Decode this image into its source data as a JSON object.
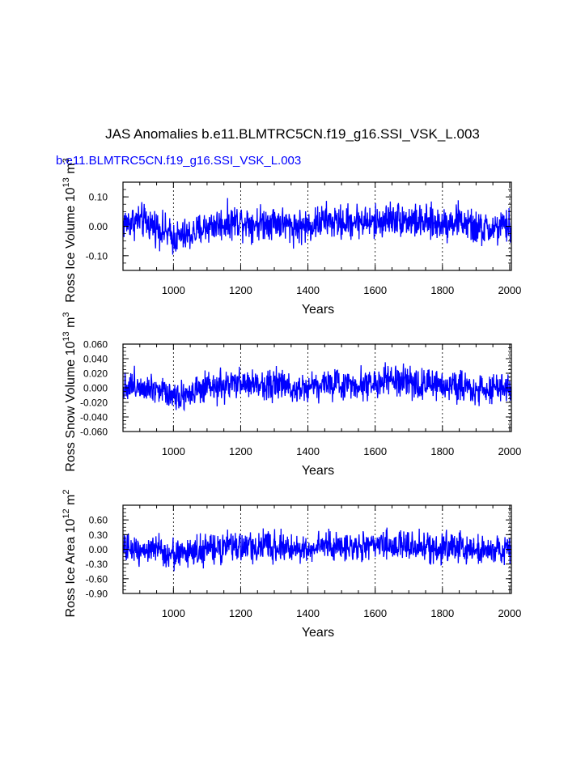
{
  "title": "JAS Anomalies b.e11.BLMTRC5CN.f19_g16.SSI_VSK_L.003",
  "subtitle": "b.e11.BLMTRC5CN.f19_g16.SSI_VSK_L.003",
  "colors": {
    "series": "#0000ff",
    "axis": "#000000",
    "grid": "#000000"
  },
  "chart_data": [
    {
      "type": "line",
      "ylabel": "Ross Ice Volume 10^13 m^3",
      "xlabel": "Years",
      "xlim": [
        850,
        2005
      ],
      "ylim": [
        -0.15,
        0.15
      ],
      "xticks": [
        1000,
        1200,
        1400,
        1600,
        1800,
        2000
      ],
      "xticklabels": [
        "1000",
        "1200",
        "1400",
        "1600",
        "1800",
        "2000"
      ],
      "yticks": [
        -0.1,
        0.0,
        0.1
      ],
      "yticklabels": [
        "-0.10",
        "0.00",
        "0.10"
      ],
      "grid": "vertical dashed at major x ticks",
      "series": [
        {
          "color": "#0000ff",
          "x": [
            850,
            900,
            950,
            1000,
            1050,
            1100,
            1150,
            1200,
            1250,
            1300,
            1350,
            1400,
            1450,
            1500,
            1550,
            1600,
            1650,
            1700,
            1750,
            1800,
            1850,
            1900,
            1950,
            2000
          ],
          "values": [
            0.01,
            0.02,
            0.0,
            -0.04,
            -0.03,
            0.0,
            0.01,
            0.02,
            0.01,
            0.02,
            0.0,
            0.0,
            0.02,
            0.01,
            0.02,
            0.01,
            0.03,
            0.02,
            0.01,
            0.01,
            0.02,
            -0.01,
            -0.01,
            0.0
          ],
          "amplitude": 0.05
        }
      ]
    },
    {
      "type": "line",
      "ylabel": "Ross Snow Volume 10^13 m^3",
      "xlabel": "Years",
      "xlim": [
        850,
        2005
      ],
      "ylim": [
        -0.06,
        0.06
      ],
      "xticks": [
        1000,
        1200,
        1400,
        1600,
        1800,
        2000
      ],
      "xticklabels": [
        "1000",
        "1200",
        "1400",
        "1600",
        "1800",
        "2000"
      ],
      "yticks": [
        -0.06,
        -0.04,
        -0.02,
        0.0,
        0.02,
        0.04,
        0.06
      ],
      "yticklabels": [
        "-0.060",
        "-0.040",
        "-0.020",
        "0.000",
        "0.020",
        "0.040",
        "0.060"
      ],
      "grid": "vertical dashed at major x ticks",
      "series": [
        {
          "color": "#0000ff",
          "x": [
            850,
            900,
            950,
            1000,
            1050,
            1100,
            1150,
            1200,
            1250,
            1300,
            1350,
            1400,
            1450,
            1500,
            1550,
            1600,
            1650,
            1700,
            1750,
            1800,
            1850,
            1900,
            1950,
            2000
          ],
          "values": [
            0.002,
            0.004,
            0.0,
            -0.01,
            -0.008,
            -0.002,
            0.002,
            0.006,
            0.004,
            0.006,
            0.0,
            0.002,
            0.006,
            0.004,
            0.006,
            0.006,
            0.01,
            0.006,
            0.004,
            0.004,
            0.004,
            -0.002,
            -0.002,
            0.0
          ],
          "amplitude": 0.018
        }
      ]
    },
    {
      "type": "line",
      "ylabel": "Ross Ice Area 10^12 m^2",
      "xlabel": "Years",
      "xlim": [
        850,
        2005
      ],
      "ylim": [
        -0.9,
        0.9
      ],
      "xticks": [
        1000,
        1200,
        1400,
        1600,
        1800,
        2000
      ],
      "xticklabels": [
        "1000",
        "1200",
        "1400",
        "1600",
        "1800",
        "2000"
      ],
      "yticks": [
        -0.9,
        -0.6,
        -0.3,
        0.0,
        0.3,
        0.6
      ],
      "yticklabels": [
        "-0.90",
        "-0.60",
        "-0.30",
        "0.00",
        "0.30",
        "0.60"
      ],
      "grid": "vertical dashed at major x ticks",
      "series": [
        {
          "color": "#0000ff",
          "x": [
            850,
            900,
            950,
            1000,
            1050,
            1100,
            1150,
            1200,
            1250,
            1300,
            1350,
            1400,
            1450,
            1500,
            1550,
            1600,
            1650,
            1700,
            1750,
            1800,
            1850,
            1900,
            1950,
            2000
          ],
          "values": [
            0.0,
            0.02,
            -0.02,
            -0.1,
            -0.06,
            0.0,
            0.02,
            0.06,
            0.04,
            0.08,
            0.0,
            0.02,
            0.08,
            0.04,
            0.06,
            0.06,
            0.1,
            0.06,
            0.04,
            0.04,
            0.06,
            -0.02,
            -0.02,
            0.0
          ],
          "amplitude": 0.26
        }
      ]
    }
  ]
}
